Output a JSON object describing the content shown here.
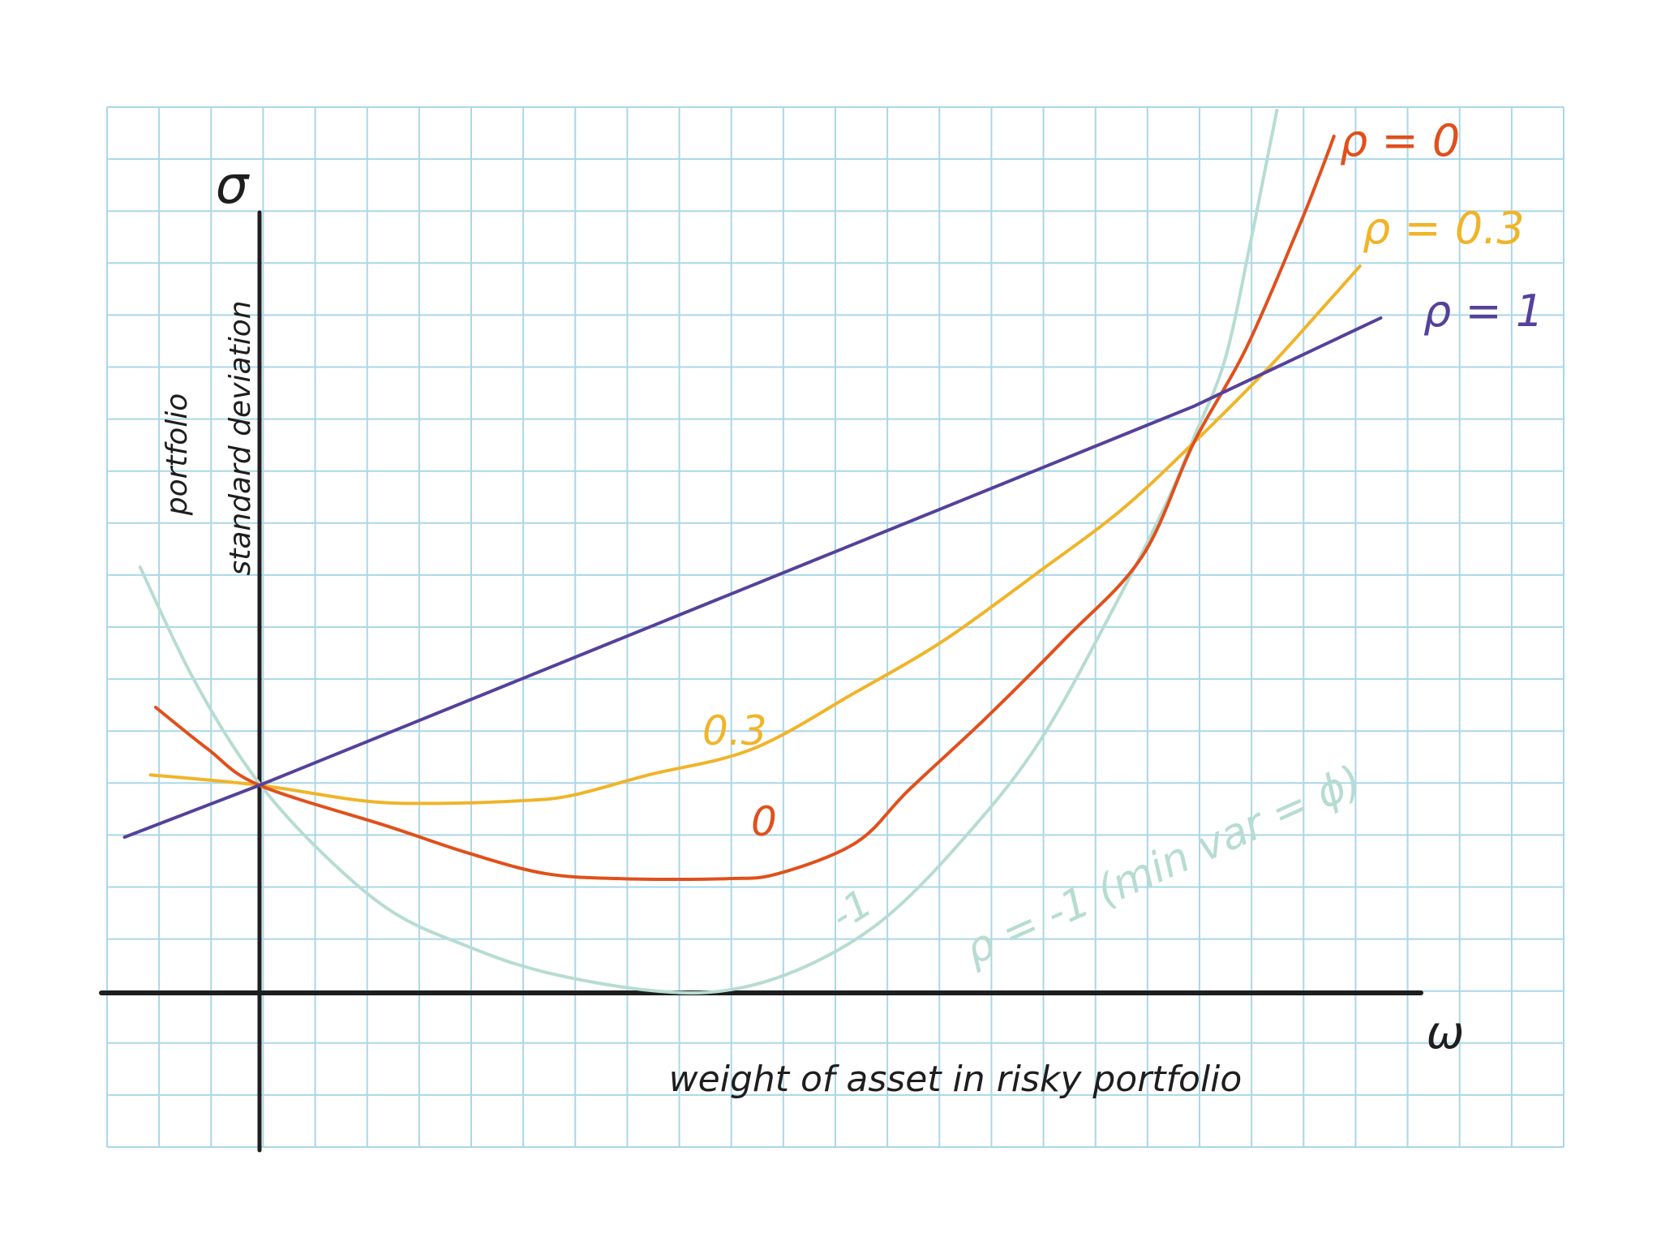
{
  "chart_data": {
    "type": "line",
    "title": "",
    "xlabel": "weight of asset in risky portfolio",
    "x_axis_symbol": "ω",
    "ylabel_line1": "portfolio",
    "ylabel_line2": "standard deviation",
    "y_axis_symbol": "σ",
    "grid": true,
    "xlim": [
      -3,
      22
    ],
    "ylim": [
      -3,
      17
    ],
    "series": [
      {
        "name": "ρ=1",
        "color": "#55419a",
        "points": [
          [
            -2.6,
            3.0
          ],
          [
            0,
            4.0
          ],
          [
            18,
            11.3
          ],
          [
            21.6,
            13.0
          ]
        ]
      },
      {
        "name": "ρ=0.3",
        "color": "#f0b429",
        "inline_label": "0.3",
        "points": [
          [
            -2.1,
            4.2
          ],
          [
            0,
            4.0
          ],
          [
            2,
            3.7
          ],
          [
            3.4,
            3.65
          ],
          [
            5,
            3.7
          ],
          [
            6,
            3.8
          ],
          [
            7.5,
            4.2
          ],
          [
            9.5,
            4.7
          ],
          [
            11.5,
            5.8
          ],
          [
            13.2,
            6.8
          ],
          [
            15,
            8.1
          ],
          [
            16.6,
            9.3
          ],
          [
            18,
            10.6
          ],
          [
            19.4,
            12.0
          ],
          [
            20.4,
            13.1
          ],
          [
            21.2,
            14.0
          ]
        ]
      },
      {
        "name": "ρ=0",
        "color": "#e0501c",
        "inline_label": "0",
        "points": [
          [
            -2,
            5.5
          ],
          [
            -1,
            4.7
          ],
          [
            0,
            4.0
          ],
          [
            2.5,
            3.2
          ],
          [
            4,
            2.7
          ],
          [
            5.5,
            2.3
          ],
          [
            7,
            2.2
          ],
          [
            9,
            2.2
          ],
          [
            10,
            2.3
          ],
          [
            11.5,
            2.9
          ],
          [
            12.5,
            3.9
          ],
          [
            14,
            5.3
          ],
          [
            15.5,
            6.8
          ],
          [
            17,
            8.4
          ],
          [
            18,
            10.6
          ],
          [
            19,
            12.4
          ],
          [
            20,
            14.7
          ],
          [
            20.4,
            15.7
          ],
          [
            20.7,
            16.5
          ]
        ]
      },
      {
        "name": "ρ=-1",
        "color": "#b7dcd2",
        "inline_label": "-1",
        "points": [
          [
            -2.3,
            8.2
          ],
          [
            -1.3,
            6.1
          ],
          [
            -0.2,
            4.3
          ],
          [
            1,
            2.9
          ],
          [
            2.5,
            1.6
          ],
          [
            4,
            0.9
          ],
          [
            5.5,
            0.4
          ],
          [
            7.5,
            0.05
          ],
          [
            9,
            0.05
          ],
          [
            10.5,
            0.5
          ],
          [
            12,
            1.4
          ],
          [
            13.5,
            2.9
          ],
          [
            15,
            4.8
          ],
          [
            16.5,
            7.5
          ],
          [
            17.5,
            9.5
          ],
          [
            18,
            10.7
          ],
          [
            18.6,
            12.2
          ],
          [
            19.1,
            14.5
          ],
          [
            19.4,
            16.0
          ],
          [
            19.6,
            17.0
          ]
        ]
      }
    ],
    "annotations": [
      {
        "text": "ρ = 0",
        "color": "#e0501c"
      },
      {
        "text": "ρ = 0.3",
        "color": "#f0b429"
      },
      {
        "text": "ρ = 1",
        "color": "#55419a"
      },
      {
        "text": "ρ = -1 (min var = ϕ)",
        "color": "#b7dcd2"
      }
    ]
  },
  "colors": {
    "grid": "#aad7e8",
    "axis": "#1e1e1e",
    "background": "#ffffff"
  }
}
